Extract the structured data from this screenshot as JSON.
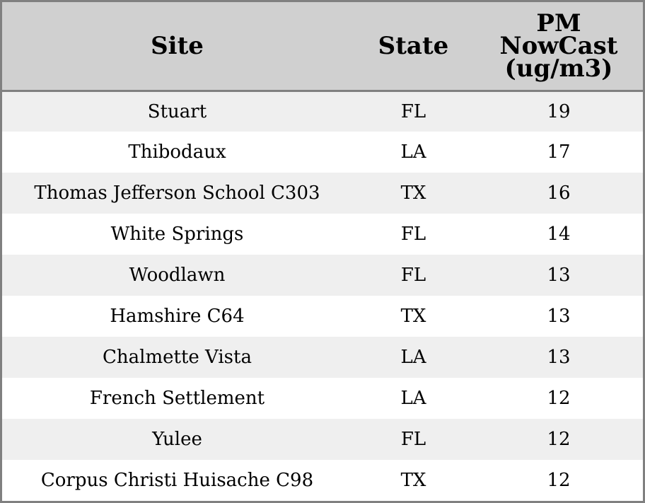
{
  "chart_data": {
    "type": "table",
    "columns": [
      "Site",
      "State",
      "PM NowCast (ug/m3)"
    ],
    "header_lines": {
      "pm": [
        "PM",
        "NowCast",
        "(ug/m3)"
      ]
    },
    "rows": [
      {
        "site": "Stuart",
        "state": "FL",
        "pm": "19"
      },
      {
        "site": "Thibodaux",
        "state": "LA",
        "pm": "17"
      },
      {
        "site": "Thomas Jefferson School C303",
        "state": "TX",
        "pm": "16"
      },
      {
        "site": "White Springs",
        "state": "FL",
        "pm": "14"
      },
      {
        "site": "Woodlawn",
        "state": "FL",
        "pm": "13"
      },
      {
        "site": "Hamshire C64",
        "state": "TX",
        "pm": "13"
      },
      {
        "site": "Chalmette Vista",
        "state": "LA",
        "pm": "13"
      },
      {
        "site": "French Settlement",
        "state": "LA",
        "pm": "12"
      },
      {
        "site": "Yulee",
        "state": "FL",
        "pm": "12"
      },
      {
        "site": "Corpus Christi Huisache C98",
        "state": "TX",
        "pm": "12"
      }
    ]
  },
  "colors": {
    "header_bg": "#d0d0d0",
    "row_alt_bg": "#efefef",
    "row_bg": "#ffffff",
    "border": "#808080",
    "text": "#000000"
  }
}
